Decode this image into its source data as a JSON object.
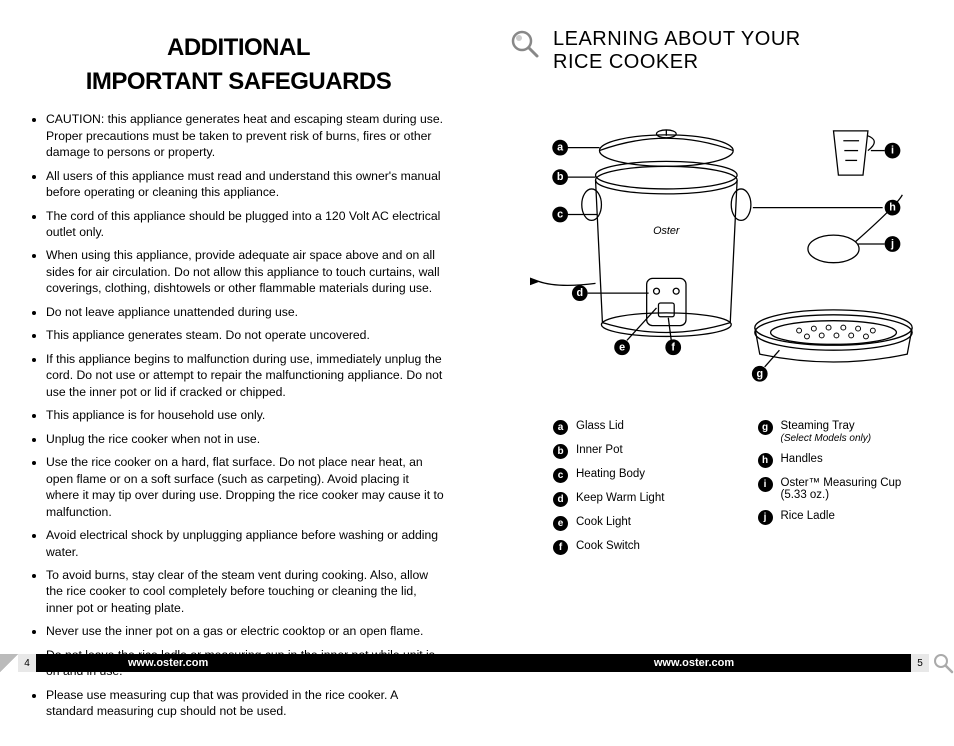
{
  "left": {
    "title_line1": "ADDITIONAL",
    "title_line2": "IMPORTANT SAFEGUARDS",
    "bullets": [
      "CAUTION: this appliance generates heat and escaping steam during use. Proper precautions must be taken to prevent risk of burns, fires or other damage to persons or property.",
      "All users of this appliance must read and understand this owner's manual before operating or cleaning this appliance.",
      "The cord of this appliance should be plugged into a 120 Volt AC electrical outlet only.",
      "When using this appliance, provide adequate air space above and on all sides for air circulation. Do not allow this appliance to touch curtains, wall coverings, clothing, dishtowels or other flammable materials during use.",
      "Do not leave appliance unattended during use.",
      "This appliance generates steam. Do not operate uncovered.",
      "If this appliance begins to malfunction during use, immediately unplug the cord. Do not use or attempt to repair the malfunctioning appliance. Do not use the inner pot or lid if cracked or chipped.",
      "This appliance is for household use only.",
      "Unplug the rice cooker when not in use.",
      "Use the rice cooker on a hard, flat surface. Do not place near heat, an open flame or on a soft surface (such as carpeting). Avoid placing it where it may tip over during use. Dropping the rice cooker may cause it to malfunction.",
      "Avoid electrical shock by unplugging appliance before washing or adding water.",
      "To avoid burns, stay clear of the steam vent during cooking. Also, allow the rice cooker to cool completely before touching or cleaning the lid, inner pot or heating plate.",
      "Never use the inner pot on a gas or electric cooktop or an open flame.",
      "Do not leave the rice ladle or measuring cup in the inner pot while unit is on and in use.",
      "Please use measuring cup that was provided in the rice cooker. A standard measuring cup should not be used."
    ],
    "url": "www.oster.com",
    "page_num": "4"
  },
  "right": {
    "title_line1": "LEARNING ABOUT YOUR",
    "title_line2": "RICE COOKER",
    "labels": {
      "a": "a",
      "b": "b",
      "c": "c",
      "d": "d",
      "e": "e",
      "f": "f",
      "g": "g",
      "h": "h",
      "i": "i",
      "j": "j"
    },
    "legend_left": [
      {
        "k": "a",
        "t": "Glass Lid"
      },
      {
        "k": "b",
        "t": "Inner Pot"
      },
      {
        "k": "c",
        "t": "Heating Body"
      },
      {
        "k": "d",
        "t": "Keep Warm Light"
      },
      {
        "k": "e",
        "t": "Cook Light"
      },
      {
        "k": "f",
        "t": "Cook Switch"
      }
    ],
    "legend_right": [
      {
        "k": "g",
        "t": "Steaming Tray",
        "note": "(Select Models only)"
      },
      {
        "k": "h",
        "t": "Handles"
      },
      {
        "k": "i",
        "t": "Oster™ Measuring Cup (5.33 oz.)"
      },
      {
        "k": "j",
        "t": "Rice Ladle"
      }
    ],
    "url": "www.oster.com",
    "page_num": "5"
  },
  "style": {
    "text_color": "#000000",
    "background": "#ffffff",
    "bar_color": "#000000",
    "badge_bg": "#000000",
    "badge_fg": "#ffffff"
  }
}
